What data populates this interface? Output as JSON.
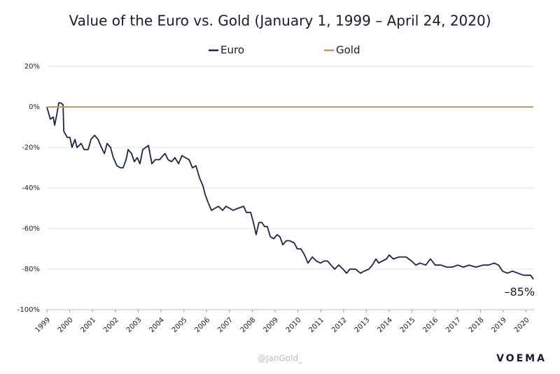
{
  "chart_data": {
    "type": "line",
    "title": "Value of the Euro vs. Gold (January 1, 1999 – April 24, 2020)",
    "series": [
      {
        "name": "Euro",
        "color": "#1c2541",
        "x": [
          1999.0,
          1999.15,
          1999.28,
          1999.34,
          1999.43,
          1999.52,
          1999.61,
          1999.71,
          1999.74,
          1999.89,
          2000.01,
          2000.1,
          2000.23,
          2000.32,
          2000.5,
          2000.63,
          2000.81,
          2000.93,
          2001.09,
          2001.24,
          2001.39,
          2001.52,
          2001.64,
          2001.79,
          2001.91,
          2002.07,
          2002.22,
          2002.34,
          2002.47,
          2002.56,
          2002.71,
          2002.83,
          2002.96,
          2003.08,
          2003.2,
          2003.33,
          2003.45,
          2003.6,
          2003.75,
          2003.94,
          2004.09,
          2004.18,
          2004.31,
          2004.46,
          2004.61,
          2004.77,
          2004.92,
          2005.07,
          2005.23,
          2005.38,
          2005.53,
          2005.69,
          2005.84,
          2005.93,
          2006.06,
          2006.21,
          2006.36,
          2006.52,
          2006.7,
          2006.85,
          2007.01,
          2007.16,
          2007.37,
          2007.62,
          2007.74,
          2007.93,
          2008.05,
          2008.17,
          2008.29,
          2008.42,
          2008.54,
          2008.66,
          2008.79,
          2008.94,
          2009.09,
          2009.21,
          2009.34,
          2009.49,
          2009.64,
          2009.83,
          2009.98,
          2010.13,
          2010.29,
          2010.44,
          2010.63,
          2010.81,
          2010.99,
          2011.15,
          2011.3,
          2011.45,
          2011.61,
          2011.79,
          2011.98,
          2012.13,
          2012.28,
          2012.53,
          2012.74,
          2012.9,
          2013.11,
          2013.26,
          2013.42,
          2013.54,
          2013.69,
          2013.88,
          2014.0,
          2014.18,
          2014.43,
          2014.74,
          2014.98,
          2015.17,
          2015.35,
          2015.6,
          2015.81,
          2016.02,
          2016.27,
          2016.52,
          2016.76,
          2017.01,
          2017.25,
          2017.5,
          2017.8,
          2018.11,
          2018.36,
          2018.6,
          2018.79,
          2018.97,
          2019.18,
          2019.4,
          2019.64,
          2019.89,
          2020.07,
          2020.2,
          2020.32
        ],
        "values": [
          0,
          -6,
          -5,
          -9,
          -4,
          2,
          2,
          1,
          -12,
          -15,
          -15,
          -20,
          -16,
          -20,
          -18,
          -21,
          -21,
          -16,
          -14,
          -16,
          -20,
          -23,
          -18,
          -20,
          -25,
          -29,
          -30,
          -30,
          -26,
          -21,
          -23,
          -27,
          -25,
          -28,
          -21,
          -20,
          -19,
          -28,
          -26,
          -26,
          -24,
          -23,
          -26,
          -27,
          -25,
          -28,
          -24,
          -25,
          -26,
          -30,
          -29,
          -35,
          -39,
          -43,
          -47,
          -51,
          -50,
          -49,
          -51,
          -49,
          -50,
          -51,
          -50,
          -49,
          -52,
          -52,
          -57,
          -63,
          -57,
          -57,
          -59,
          -59,
          -64,
          -65,
          -63,
          -64,
          -68,
          -66,
          -66,
          -67,
          -70,
          -70,
          -73,
          -77,
          -74,
          -76,
          -77,
          -76,
          -76,
          -78,
          -80,
          -78,
          -80,
          -82,
          -80,
          -80,
          -82,
          -81,
          -80,
          -78,
          -75,
          -77,
          -76,
          -75,
          -73,
          -75,
          -74,
          -74,
          -76,
          -78,
          -77,
          -78,
          -75,
          -78,
          -78,
          -79,
          -79,
          -78,
          -79,
          -78,
          -79,
          -78,
          -78,
          -77,
          -78,
          -81,
          -82,
          -81,
          -82,
          -83,
          -83,
          -83,
          -85
        ]
      },
      {
        "name": "Gold",
        "color": "#b39a70",
        "x": [
          1999.0,
          2020.32
        ],
        "values": [
          0,
          0
        ]
      }
    ],
    "xlim": [
      1999,
      2020.35
    ],
    "xticks": [
      1999,
      2000,
      2001,
      2002,
      2003,
      2004,
      2005,
      2006,
      2007,
      2008,
      2009,
      2010,
      2011,
      2012,
      2013,
      2014,
      2015,
      2016,
      2017,
      2018,
      2019,
      2020
    ],
    "ylim": [
      -100,
      20
    ],
    "yticks": [
      {
        "value": 20,
        "label": "20%"
      },
      {
        "value": 0,
        "label": "0%"
      },
      {
        "value": -20,
        "label": "-20%"
      },
      {
        "value": -40,
        "label": "-40%"
      },
      {
        "value": -60,
        "label": "-60%"
      },
      {
        "value": -80,
        "label": "-80%"
      },
      {
        "value": -100,
        "label": "-100%"
      }
    ],
    "grid": true,
    "legend": "top",
    "annotation": {
      "text": "–85%",
      "x": 2020.32,
      "y": -85
    },
    "watermarks": [
      "@JanGold_",
      "VOEMA"
    ]
  }
}
